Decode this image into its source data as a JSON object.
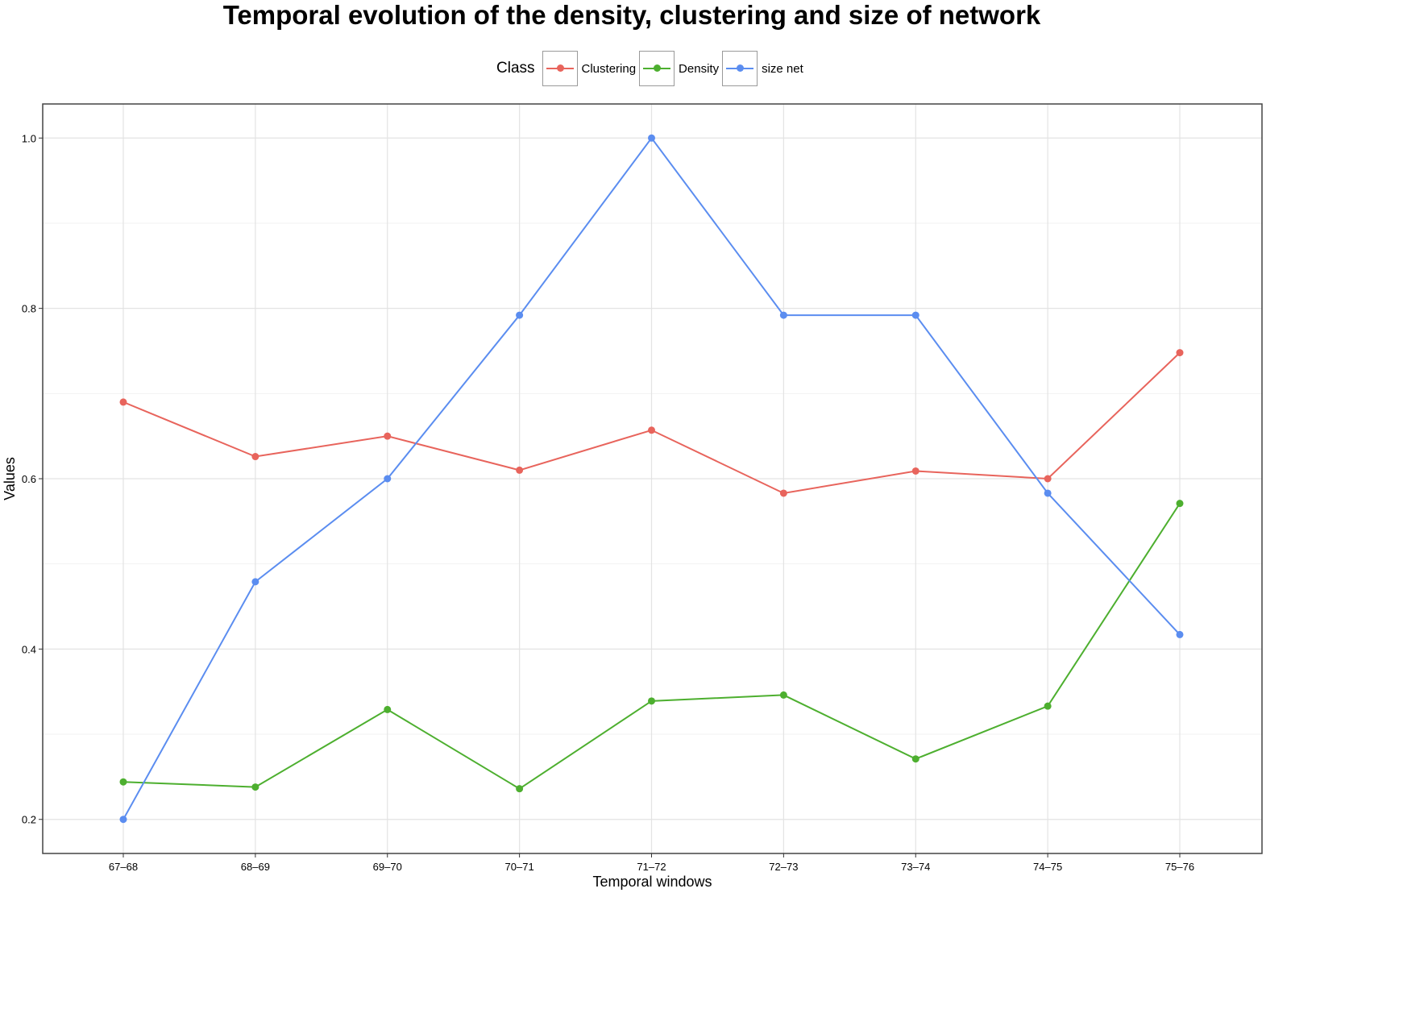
{
  "chart_data": {
    "type": "line",
    "title": "Temporal evolution of the density, clustering and size of network",
    "xlabel": "Temporal windows",
    "ylabel": "Values",
    "categories": [
      "67–68",
      "68–69",
      "69–70",
      "70–71",
      "71–72",
      "72–73",
      "73–74",
      "74–75",
      "75–76"
    ],
    "ylim": [
      0.16,
      1.04
    ],
    "yticks": [
      0.2,
      0.4,
      0.6,
      0.8,
      1.0
    ],
    "ytick_labels": [
      "0.2",
      "0.4",
      "0.6",
      "0.8",
      "1.0"
    ],
    "grid": true,
    "legend": {
      "title": "Class",
      "placement": "top"
    },
    "series": [
      {
        "name": "Clustering",
        "color": "#E8645C",
        "values": [
          0.69,
          0.626,
          0.65,
          0.61,
          0.657,
          0.583,
          0.609,
          0.6,
          0.748
        ]
      },
      {
        "name": "Density",
        "color": "#4DAF2F",
        "values": [
          0.244,
          0.238,
          0.329,
          0.236,
          0.339,
          0.346,
          0.271,
          0.333,
          0.571
        ]
      },
      {
        "name": "size net",
        "color": "#5B8DF0",
        "values": [
          0.2,
          0.479,
          0.6,
          0.792,
          1.0,
          0.792,
          0.792,
          0.583,
          0.417
        ]
      }
    ]
  }
}
